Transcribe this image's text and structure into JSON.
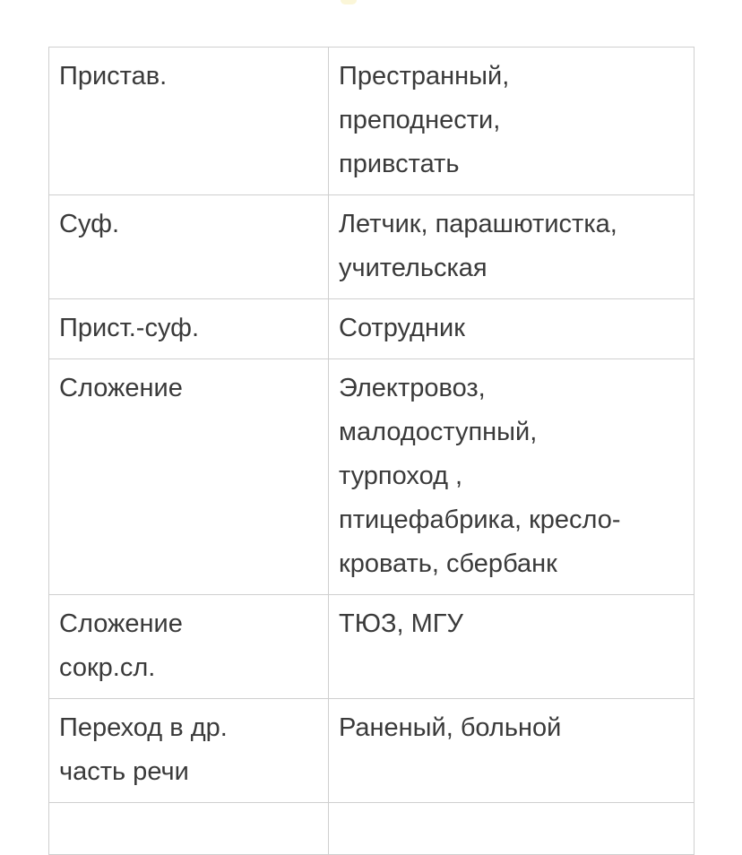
{
  "rows": [
    {
      "type": "Пристав.",
      "examples": "Престранный,\nпреподнести,\nпривстать"
    },
    {
      "type": "Суф.",
      "examples": "Летчик, парашютистка,\nучительская"
    },
    {
      "type": "Прист.-суф.",
      "examples": "Сотрудник"
    },
    {
      "type": "Сложение",
      "examples": "Электровоз,\nмалодоступный,\nтурпоход ,\nптицефабрика, кресло-\nкровать, сбербанк"
    },
    {
      "type": "Сложение\nсокр.сл.",
      "examples": "ТЮЗ, МГУ"
    },
    {
      "type": "Переход в др.\nчасть речи",
      "examples": "Раненый, больной"
    },
    {
      "type": "",
      "examples": ""
    }
  ]
}
